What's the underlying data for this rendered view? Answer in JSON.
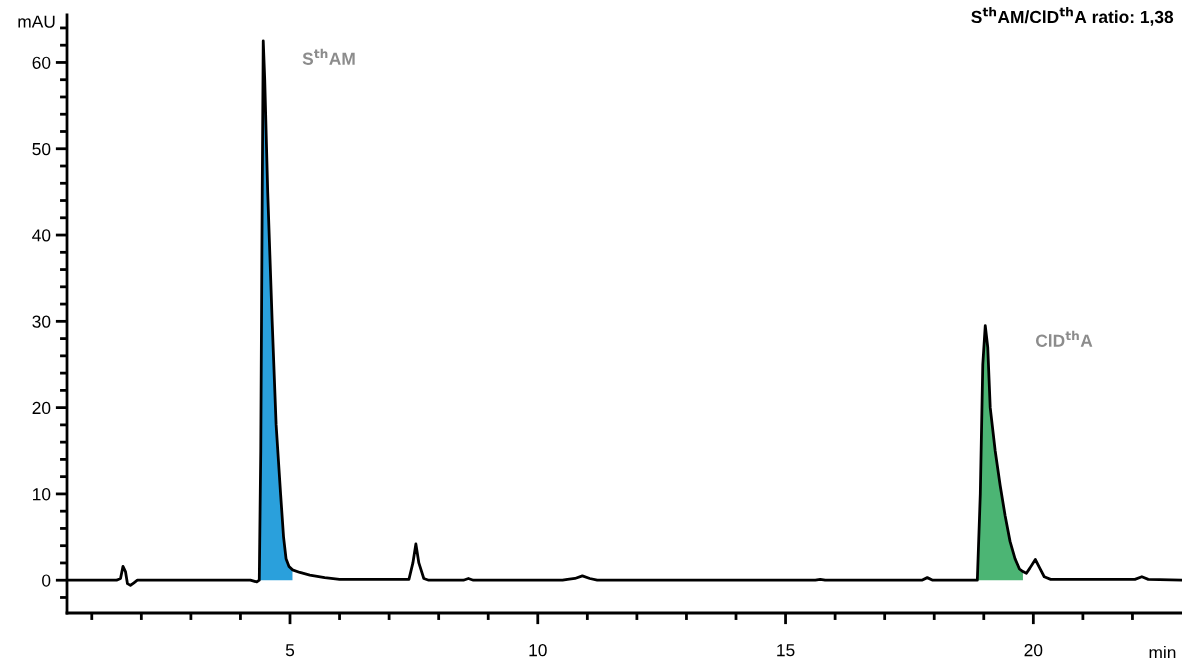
{
  "chart_data": {
    "type": "line",
    "title": "S$^{th}$AM/ClD$^{th}$A ratio: 1,38",
    "xlabel": "min",
    "ylabel": "mAU",
    "series": [
      {
        "type": "area",
        "color": "#2aa0dc",
        "x": [
          4.38,
          4.41,
          4.44,
          4.46,
          4.49,
          4.55,
          4.64,
          4.72,
          4.81,
          4.87,
          4.92,
          4.98,
          5.05
        ],
        "values": [
          0,
          15,
          45,
          62.5,
          58,
          45,
          30,
          18,
          10,
          5,
          2.5,
          1.6,
          1.2
        ]
      },
      {
        "type": "area",
        "color": "#4cb574",
        "x": [
          18.87,
          18.93,
          18.98,
          19.03,
          19.08,
          19.13,
          19.23,
          19.33,
          19.43,
          19.53,
          19.63,
          19.72,
          19.79
        ],
        "values": [
          0,
          10,
          25,
          29.5,
          27,
          20,
          15,
          11,
          7.5,
          4.5,
          2.5,
          1.3,
          1.0
        ]
      },
      {
        "color": "#000000",
        "x": [
          0.5,
          1.5,
          1.58,
          1.63,
          1.68,
          1.72,
          1.78,
          1.85,
          1.92,
          3.0,
          4.2,
          4.33,
          4.38,
          4.41,
          4.44,
          4.46,
          4.49,
          4.55,
          4.64,
          4.72,
          4.81,
          4.87,
          4.92,
          4.98,
          5.05,
          5.2,
          5.4,
          5.7,
          6.0,
          7.0,
          7.4,
          7.48,
          7.54,
          7.6,
          7.7,
          7.8,
          8.5,
          8.6,
          8.7,
          10.5,
          10.6,
          10.75,
          10.9,
          11.05,
          11.2,
          15.6,
          15.7,
          15.8,
          17.75,
          17.86,
          17.97,
          18.8,
          18.87,
          18.93,
          18.98,
          19.03,
          19.08,
          19.13,
          19.23,
          19.33,
          19.43,
          19.53,
          19.63,
          19.72,
          19.79,
          19.86,
          19.93,
          20.04,
          20.13,
          20.22,
          20.35,
          22.05,
          22.19,
          22.32,
          23
        ],
        "values": [
          0,
          0,
          0.2,
          1.6,
          1.0,
          -0.4,
          -0.6,
          -0.3,
          0,
          0,
          0,
          -0.2,
          0,
          15,
          45,
          62.5,
          58,
          45,
          30,
          18,
          10,
          5,
          2.5,
          1.6,
          1.2,
          0.9,
          0.6,
          0.3,
          0.1,
          0.1,
          0.1,
          2,
          4.2,
          2,
          0.2,
          0,
          0,
          0.2,
          0,
          0,
          0.1,
          0.2,
          0.5,
          0.2,
          0,
          0,
          0.1,
          0,
          0,
          0.3,
          0,
          0,
          0,
          10,
          25,
          29.5,
          27,
          20,
          15,
          11,
          7.5,
          4.5,
          2.5,
          1.3,
          1.0,
          0.8,
          1.4,
          2.4,
          1.4,
          0.4,
          0.1,
          0.1,
          0.4,
          0.1,
          0
        ]
      }
    ],
    "annotations": [
      {
        "text": "S$^{th}$AM",
        "x": 4.46,
        "y": 62.5
      },
      {
        "text": "ClD$^{th}$A",
        "x": 19.03,
        "y": 29.5
      }
    ],
    "xlim": [
      0.5,
      23
    ],
    "xticks": [
      {
        "value": 1,
        "label": null
      },
      {
        "value": 2,
        "label": null
      },
      {
        "value": 3,
        "label": null
      },
      {
        "value": 4,
        "label": null
      },
      5,
      {
        "value": 6,
        "label": null
      },
      {
        "value": 7,
        "label": null
      },
      {
        "value": 8,
        "label": null
      },
      {
        "value": 9,
        "label": null
      },
      10,
      {
        "value": 11,
        "label": null
      },
      {
        "value": 12,
        "label": null
      },
      {
        "value": 13,
        "label": null
      },
      {
        "value": 14,
        "label": null
      },
      15,
      {
        "value": 16,
        "label": null
      },
      {
        "value": 17,
        "label": null
      },
      {
        "value": 18,
        "label": null
      },
      {
        "value": 19,
        "label": null
      },
      20,
      {
        "value": 21,
        "label": null
      },
      {
        "value": 22,
        "label": null
      }
    ],
    "ylim": [
      -3.8,
      65.5
    ],
    "yticks": [
      {
        "value": -2,
        "label": null
      },
      0,
      {
        "value": 2,
        "label": null
      },
      {
        "value": 4,
        "label": null
      },
      {
        "value": 6,
        "label": null
      },
      {
        "value": 8,
        "label": null
      },
      10,
      {
        "value": 12,
        "label": null
      },
      {
        "value": 14,
        "label": null
      },
      {
        "value": 16,
        "label": null
      },
      {
        "value": 18,
        "label": null
      },
      20,
      {
        "value": 22,
        "label": null
      },
      {
        "value": 24,
        "label": null
      },
      {
        "value": 26,
        "label": null
      },
      {
        "value": 28,
        "label": null
      },
      30,
      {
        "value": 32,
        "label": null
      },
      {
        "value": 34,
        "label": null
      },
      {
        "value": 36,
        "label": null
      },
      {
        "value": 38,
        "label": null
      },
      40,
      {
        "value": 42,
        "label": null
      },
      {
        "value": 44,
        "label": null
      },
      {
        "value": 46,
        "label": null
      },
      {
        "value": 48,
        "label": null
      },
      50,
      {
        "value": 52,
        "label": null
      },
      {
        "value": 54,
        "label": null
      },
      {
        "value": 56,
        "label": null
      },
      {
        "value": 58,
        "label": null
      },
      60,
      {
        "value": 62,
        "label": null
      },
      {
        "value": 64,
        "label": null
      }
    ],
    "grid": false,
    "legend": false
  }
}
